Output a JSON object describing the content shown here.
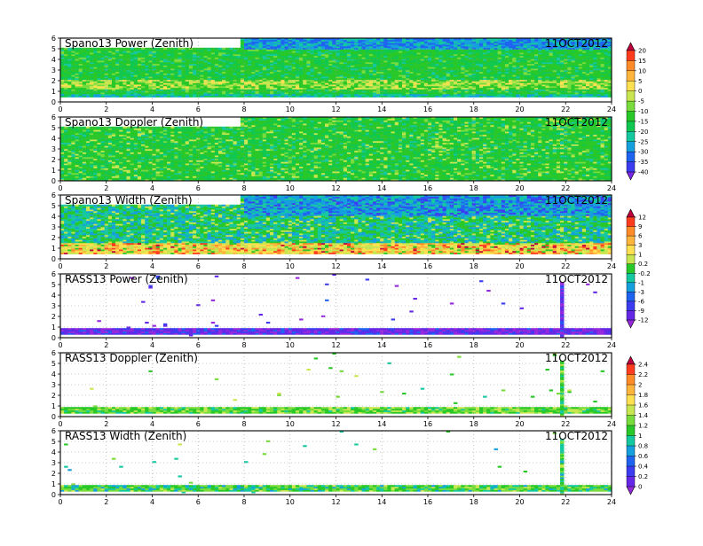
{
  "chart_data": [
    {
      "type": "heatmap",
      "title": "Spano13 Power (Zenith)",
      "date": "11OCT2012",
      "x_ticks": [
        0,
        2,
        4,
        6,
        8,
        10,
        12,
        14,
        16,
        18,
        20,
        22,
        24
      ],
      "y_ticks": [
        0,
        1,
        2,
        3,
        4,
        5,
        6
      ],
      "xlim": [
        0,
        24
      ],
      "ylim": [
        0,
        6
      ],
      "grid": true,
      "colorbar_group": "power-doppler",
      "data_extent": {
        "lowest_gate": 0.4,
        "top_before_hour": 7.9,
        "top_before": 5.05,
        "top_after": 6.0
      },
      "pattern": "mostly -15 to -20 dB with a -5 to 0 dB band near 1.5-2 km; -35 dB at top after 8h"
    },
    {
      "type": "heatmap",
      "title": "Spano13 Doppler (Zenith)",
      "date": "11OCT2012",
      "x_ticks": [
        0,
        2,
        4,
        6,
        8,
        10,
        12,
        14,
        16,
        18,
        20,
        22,
        24
      ],
      "y_ticks": [
        0,
        1,
        2,
        3,
        4,
        5,
        6
      ],
      "xlim": [
        0,
        24
      ],
      "ylim": [
        0,
        6
      ],
      "grid": true,
      "colorbar_group": "power-doppler",
      "data_extent": {
        "lowest_gate": 0.0,
        "top_before_hour": 7.9,
        "top_before": 5.05,
        "top_after": 6.0
      },
      "pattern": "mostly -15 to -20 with scattered -5 streaks"
    },
    {
      "type": "heatmap",
      "title": "Spano13 Width (Zenith)",
      "date": "11OCT2012",
      "x_ticks": [
        0,
        2,
        4,
        6,
        8,
        10,
        12,
        14,
        16,
        18,
        20,
        22,
        24
      ],
      "y_ticks": [
        0,
        1,
        2,
        3,
        4,
        5,
        6
      ],
      "xlim": [
        0,
        24
      ],
      "ylim": [
        0,
        6
      ],
      "grid": true,
      "colorbar_group": "width-power",
      "data_extent": {
        "lowest_gate": 0.4,
        "top_before_hour": 7.9,
        "top_before": 5.05,
        "top_after": 6.0
      },
      "pattern": "0.2 to -1 aloft, 1 to 9 near 0.5-1.5 km with 12 hot spots"
    },
    {
      "type": "heatmap",
      "title": "RASS13 Power (Zenith)",
      "date": "11OCT2012",
      "x_ticks": [
        0,
        2,
        4,
        6,
        8,
        10,
        12,
        14,
        16,
        18,
        20,
        22,
        24
      ],
      "y_ticks": [
        0,
        1,
        2,
        3,
        4,
        5,
        6
      ],
      "xlim": [
        0,
        24
      ],
      "ylim": [
        0,
        6
      ],
      "grid": true,
      "colorbar_group": "width-power",
      "data_extent": {
        "band_low": 0.35,
        "band_high": 0.9,
        "spike_hour": 21.85
      },
      "pattern": "-9 to -12 band below 1 km, sparse points aloft, vertical stripe near 21.9h"
    },
    {
      "type": "heatmap",
      "title": "RASS13 Doppler (Zenith)",
      "date": "11OCT2012",
      "x_ticks": [
        0,
        2,
        4,
        6,
        8,
        10,
        12,
        14,
        16,
        18,
        20,
        22,
        24
      ],
      "y_ticks": [
        0,
        1,
        2,
        3,
        4,
        5,
        6
      ],
      "xlim": [
        0,
        24
      ],
      "ylim": [
        0,
        6
      ],
      "grid": true,
      "colorbar_group": "doppler-width",
      "data_extent": {
        "band_low": 0.35,
        "band_high": 0.9,
        "spike_hour": 21.85
      },
      "pattern": "1 to 1.4 band below 1 km, sparse points aloft, vertical stripe near 21.9h"
    },
    {
      "type": "heatmap",
      "title": "RASS13 Width (Zenith)",
      "date": "11OCT2012",
      "x_ticks": [
        0,
        2,
        4,
        6,
        8,
        10,
        12,
        14,
        16,
        18,
        20,
        22,
        24
      ],
      "y_ticks": [
        0,
        1,
        2,
        3,
        4,
        5,
        6
      ],
      "xlim": [
        0,
        24
      ],
      "ylim": [
        0,
        6
      ],
      "grid": true,
      "colorbar_group": "doppler-width",
      "data_extent": {
        "band_low": 0.35,
        "band_high": 0.9,
        "spike_hour": 21.85
      },
      "pattern": "0.6 to 1.4 band below 1 km, sparse points aloft, vertical stripe near 21.9h"
    }
  ],
  "colorbars": [
    {
      "name": "power-doppler",
      "labels": [
        "20",
        "15",
        "10",
        "5",
        "0",
        "-5",
        "-10",
        "-15",
        "-20",
        "-25",
        "-30",
        "-35",
        "-40"
      ],
      "colors": [
        "#c0003c",
        "#ff3c1e",
        "#ff8c28",
        "#ffb43c",
        "#ffe050",
        "#c8e650",
        "#78dc3c",
        "#28c828",
        "#10c850",
        "#14c8a0",
        "#14a0dc",
        "#1e64f0",
        "#3c3cf0",
        "#7828e6"
      ]
    },
    {
      "name": "width-power",
      "labels": [
        "12",
        "9",
        "6",
        "3",
        "1",
        "0.2",
        "-0.2",
        "-1",
        "-3",
        "-6",
        "-9",
        "-12"
      ],
      "colors": [
        "#c0003c",
        "#ff3c1e",
        "#ff8c28",
        "#ffb43c",
        "#ffe050",
        "#c8e650",
        "#28c828",
        "#14c8a0",
        "#14a0dc",
        "#1e64f0",
        "#3c3cf0",
        "#6428e6",
        "#9628dc"
      ]
    },
    {
      "name": "doppler-width",
      "labels": [
        "2.4",
        "2.2",
        "2",
        "1.8",
        "1.6",
        "1.4",
        "1.2",
        "1",
        "0.8",
        "0.6",
        "0.4",
        "0.2",
        "0"
      ],
      "colors": [
        "#c0003c",
        "#ff3c1e",
        "#ff8c28",
        "#ffb43c",
        "#ffe050",
        "#c8e650",
        "#78dc3c",
        "#28c828",
        "#14c8a0",
        "#14a0dc",
        "#1e64f0",
        "#3c3cf0",
        "#6428e6",
        "#9628dc"
      ]
    }
  ]
}
